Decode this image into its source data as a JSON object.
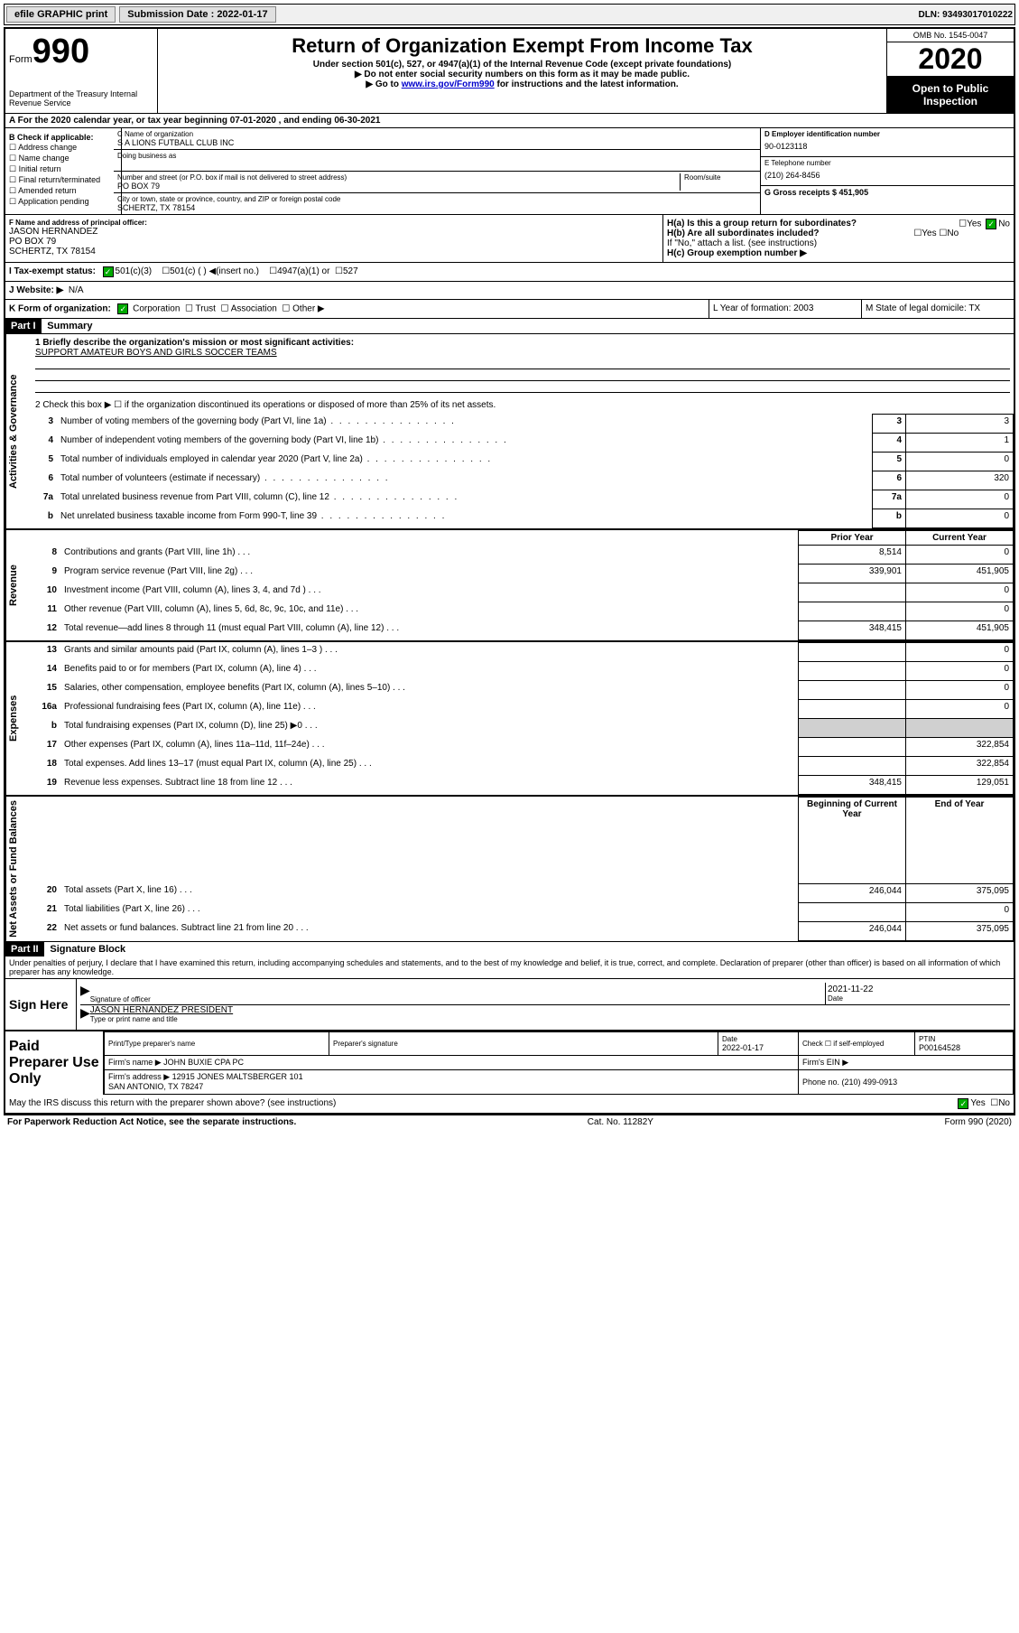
{
  "top_bar": {
    "efile": "efile GRAPHIC print",
    "submission_label": "Submission Date : 2022-01-17",
    "dln": "DLN: 93493017010222"
  },
  "header": {
    "form_label": "Form",
    "form_number": "990",
    "dept": "Department of the Treasury\nInternal Revenue Service",
    "title": "Return of Organization Exempt From Income Tax",
    "subtitle": "Under section 501(c), 527, or 4947(a)(1) of the Internal Revenue Code (except private foundations)",
    "note1": "▶ Do not enter social security numbers on this form as it may be made public.",
    "note2_pre": "▶ Go to ",
    "note2_link": "www.irs.gov/Form990",
    "note2_post": " for instructions and the latest information.",
    "omb": "OMB No. 1545-0047",
    "year": "2020",
    "inspection": "Open to Public Inspection"
  },
  "line_a": "A For the 2020 calendar year, or tax year beginning 07-01-2020    , and ending 06-30-2021",
  "section_b": {
    "check_label": "B Check if applicable:",
    "checks": [
      "Address change",
      "Name change",
      "Initial return",
      "Final return/terminated",
      "Amended return",
      "Application pending"
    ],
    "c_label": "C Name of organization",
    "org_name": "S A LIONS FUTBALL CLUB INC",
    "dba_label": "Doing business as",
    "addr_label": "Number and street (or P.O. box if mail is not delivered to street address)",
    "room_label": "Room/suite",
    "addr": "PO BOX 79",
    "city_label": "City or town, state or province, country, and ZIP or foreign postal code",
    "city": "SCHERTZ, TX  78154",
    "d_label": "D Employer identification number",
    "ein": "90-0123118",
    "e_label": "E Telephone number",
    "phone": "(210) 264-8456",
    "g_label": "G Gross receipts $ 451,905"
  },
  "section_f": {
    "label": "F Name and address of principal officer:",
    "name": "JASON HERNANDEZ",
    "addr1": "PO BOX 79",
    "addr2": "SCHERTZ, TX  78154"
  },
  "section_h": {
    "ha": "H(a)  Is this a group return for subordinates?",
    "hb": "H(b) Are all subordinates included?",
    "hb_note": "If \"No,\" attach a list. (see instructions)",
    "hc": "H(c) Group exemption number ▶"
  },
  "section_i": {
    "label": "I Tax-exempt status:",
    "opt1": "501(c)(3)",
    "opt2": "501(c) (  ) ◀(insert no.)",
    "opt3": "4947(a)(1) or",
    "opt4": "527"
  },
  "section_j": {
    "label": "J Website: ▶",
    "value": "N/A"
  },
  "section_k": {
    "label": "K Form of organization:",
    "opts": [
      "Corporation",
      "Trust",
      "Association",
      "Other ▶"
    ]
  },
  "section_l": {
    "label": "L Year of formation: 2003"
  },
  "section_m": {
    "label": "M State of legal domicile: TX"
  },
  "part1": {
    "header": "Part I",
    "title": "Summary",
    "line1_label": "1 Briefly describe the organization's mission or most significant activities:",
    "mission": "SUPPORT AMATEUR BOYS AND GIRLS SOCCER TEAMS",
    "line2": "2   Check this box ▶ ☐  if the organization discontinued its operations or disposed of more than 25% of its net assets.",
    "vert_gov": "Activities & Governance",
    "vert_rev": "Revenue",
    "vert_exp": "Expenses",
    "vert_net": "Net Assets or Fund Balances",
    "col_prior": "Prior Year",
    "col_current": "Current Year",
    "col_begin": "Beginning of Current Year",
    "col_end": "End of Year",
    "rows_gov": [
      {
        "n": "3",
        "desc": "Number of voting members of the governing body (Part VI, line 1a)",
        "val": "3"
      },
      {
        "n": "4",
        "desc": "Number of independent voting members of the governing body (Part VI, line 1b)",
        "val": "1"
      },
      {
        "n": "5",
        "desc": "Total number of individuals employed in calendar year 2020 (Part V, line 2a)",
        "val": "0"
      },
      {
        "n": "6",
        "desc": "Total number of volunteers (estimate if necessary)",
        "val": "320"
      },
      {
        "n": "7a",
        "desc": "Total unrelated business revenue from Part VIII, column (C), line 12",
        "val": "0"
      },
      {
        "n": "b",
        "desc": "Net unrelated business taxable income from Form 990-T, line 39",
        "val": "0"
      }
    ],
    "rows_rev": [
      {
        "n": "8",
        "desc": "Contributions and grants (Part VIII, line 1h)",
        "prior": "8,514",
        "cur": "0"
      },
      {
        "n": "9",
        "desc": "Program service revenue (Part VIII, line 2g)",
        "prior": "339,901",
        "cur": "451,905"
      },
      {
        "n": "10",
        "desc": "Investment income (Part VIII, column (A), lines 3, 4, and 7d )",
        "prior": "",
        "cur": "0"
      },
      {
        "n": "11",
        "desc": "Other revenue (Part VIII, column (A), lines 5, 6d, 8c, 9c, 10c, and 11e)",
        "prior": "",
        "cur": "0"
      },
      {
        "n": "12",
        "desc": "Total revenue—add lines 8 through 11 (must equal Part VIII, column (A), line 12)",
        "prior": "348,415",
        "cur": "451,905"
      }
    ],
    "rows_exp": [
      {
        "n": "13",
        "desc": "Grants and similar amounts paid (Part IX, column (A), lines 1–3 )",
        "prior": "",
        "cur": "0"
      },
      {
        "n": "14",
        "desc": "Benefits paid to or for members (Part IX, column (A), line 4)",
        "prior": "",
        "cur": "0"
      },
      {
        "n": "15",
        "desc": "Salaries, other compensation, employee benefits (Part IX, column (A), lines 5–10)",
        "prior": "",
        "cur": "0"
      },
      {
        "n": "16a",
        "desc": "Professional fundraising fees (Part IX, column (A), line 11e)",
        "prior": "",
        "cur": "0"
      },
      {
        "n": "b",
        "desc": "Total fundraising expenses (Part IX, column (D), line 25) ▶0",
        "prior": "GRAY",
        "cur": "GRAY"
      },
      {
        "n": "17",
        "desc": "Other expenses (Part IX, column (A), lines 11a–11d, 11f–24e)",
        "prior": "",
        "cur": "322,854"
      },
      {
        "n": "18",
        "desc": "Total expenses. Add lines 13–17 (must equal Part IX, column (A), line 25)",
        "prior": "",
        "cur": "322,854"
      },
      {
        "n": "19",
        "desc": "Revenue less expenses. Subtract line 18 from line 12",
        "prior": "348,415",
        "cur": "129,051"
      }
    ],
    "rows_net": [
      {
        "n": "20",
        "desc": "Total assets (Part X, line 16)",
        "prior": "246,044",
        "cur": "375,095"
      },
      {
        "n": "21",
        "desc": "Total liabilities (Part X, line 26)",
        "prior": "",
        "cur": "0"
      },
      {
        "n": "22",
        "desc": "Net assets or fund balances. Subtract line 21 from line 20",
        "prior": "246,044",
        "cur": "375,095"
      }
    ]
  },
  "part2": {
    "header": "Part II",
    "title": "Signature Block",
    "penalty": "Under penalties of perjury, I declare that I have examined this return, including accompanying schedules and statements, and to the best of my knowledge and belief, it is true, correct, and complete. Declaration of preparer (other than officer) is based on all information of which preparer has any knowledge.",
    "sign_here": "Sign Here",
    "sig_officer": "Signature of officer",
    "sig_date": "2021-11-22",
    "date_label": "Date",
    "typed_name": "JASON HERNANDEZ  PRESIDENT",
    "typed_label": "Type or print name and title"
  },
  "paid_prep": {
    "label": "Paid Preparer Use Only",
    "print_label": "Print/Type preparer's name",
    "sig_label": "Preparer's signature",
    "date_label": "Date",
    "date": "2022-01-17",
    "check_label": "Check ☐ if self-employed",
    "ptin_label": "PTIN",
    "ptin": "P00164528",
    "firm_name_label": "Firm's name    ▶",
    "firm_name": "JOHN BUXIE CPA PC",
    "firm_ein_label": "Firm's EIN ▶",
    "firm_addr_label": "Firm's address ▶",
    "firm_addr": "12915 JONES MALTSBERGER 101\nSAN ANTONIO, TX  78247",
    "firm_phone_label": "Phone no. (210) 499-0913"
  },
  "discuss": "May the IRS discuss this return with the preparer shown above? (see instructions)",
  "footer": {
    "paperwork": "For Paperwork Reduction Act Notice, see the separate instructions.",
    "cat": "Cat. No. 11282Y",
    "form": "Form 990 (2020)"
  }
}
